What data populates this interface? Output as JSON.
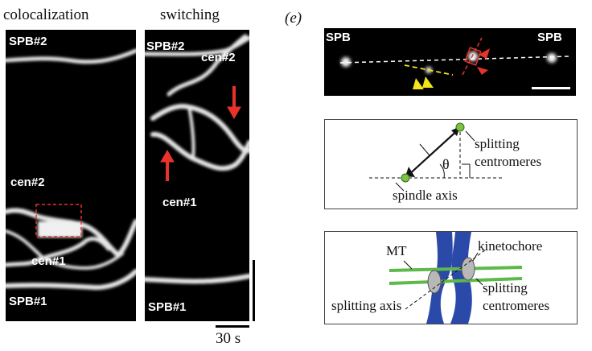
{
  "left_panel": {
    "title_colocalization": "colocalization",
    "title_switching": "switching",
    "labels": {
      "spb2_a": "SPB#2",
      "cen2_a": "cen#2",
      "cen1_a": "cen#1",
      "spb1_a": "SPB#1",
      "spb2_b": "SPB#2",
      "cen2_b": "cen#2",
      "cen1_b": "cen#1",
      "spb1_b": "SPB#1"
    },
    "scale_label": "30 s"
  },
  "panel_e": {
    "letter": "(e)",
    "image_labels": {
      "spb_left": "SPB",
      "spb_right": "SPB"
    },
    "diagram1": {
      "splitting": "splitting",
      "centromeres": "centromeres",
      "theta": "θ",
      "spindle_axis": "spindle axis"
    },
    "diagram2": {
      "mt": "MT",
      "kinetochore": "kinetochore",
      "splitting": "splitting",
      "centromeres": "centromeres",
      "splitting_axis": "splitting axis"
    }
  },
  "colors": {
    "arrow_red": "#e8332b",
    "arrow_yellow": "#f2e31a",
    "dot_green": "#7dc242",
    "mt_green": "#5cb94a",
    "chromosome_blue": "#2b49a8",
    "kinetochore_grey": "#b8b8b8"
  }
}
